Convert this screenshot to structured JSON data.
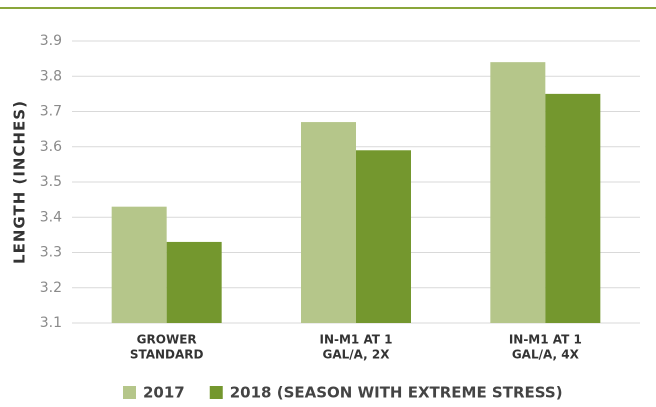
{
  "chart_data": {
    "type": "bar",
    "y_label": "LENGTH (INCHES)",
    "categories": [
      [
        "GROWER",
        "STANDARD"
      ],
      [
        "IN-M1 AT 1",
        "GAL/A, 2X"
      ],
      [
        "IN-M1 AT 1",
        "GAL/A, 4X"
      ]
    ],
    "series": [
      {
        "name": "2017",
        "color": "#b5c68a",
        "values": [
          3.43,
          3.67,
          3.84
        ]
      },
      {
        "name": "2018 (SEASON WITH EXTREME STRESS)",
        "color": "#74972e",
        "values": [
          3.33,
          3.59,
          3.75
        ]
      }
    ],
    "ylim": [
      3.1,
      3.9
    ],
    "yticks": [
      3.1,
      3.2,
      3.3,
      3.4,
      3.5,
      3.6,
      3.7,
      3.8,
      3.9
    ],
    "grid": true
  }
}
